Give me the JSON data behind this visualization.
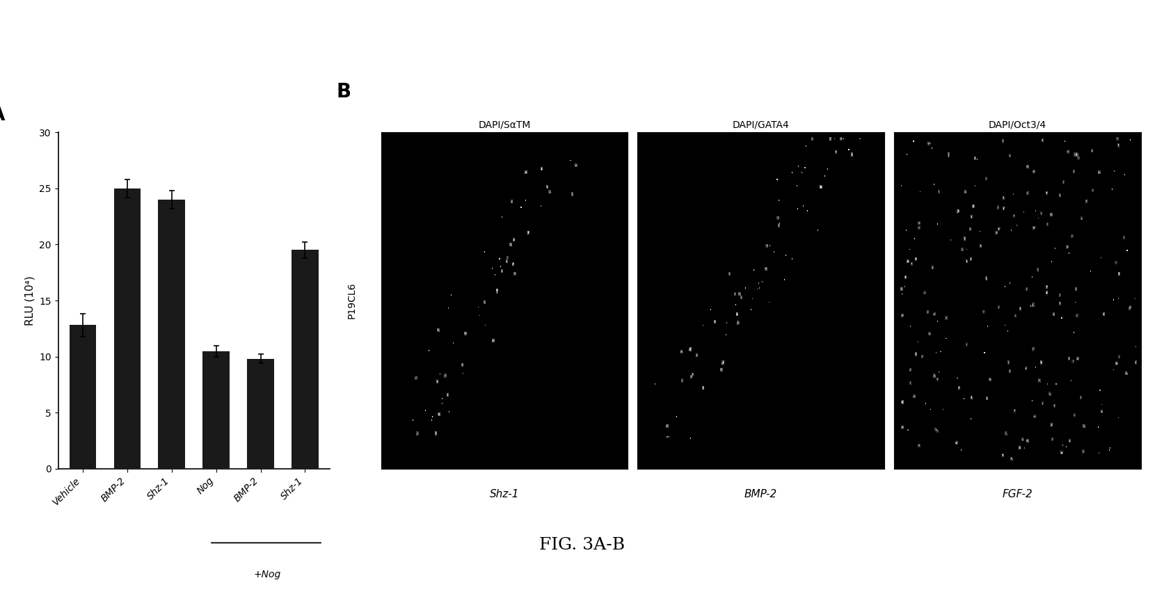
{
  "bar_values": [
    12.8,
    25.0,
    24.0,
    10.5,
    9.8,
    19.5
  ],
  "bar_errors": [
    1.0,
    0.8,
    0.8,
    0.5,
    0.4,
    0.7
  ],
  "bar_labels": [
    "Vehicle",
    "BMP-2",
    "Shz-1",
    "Nog",
    "BMP-2",
    "Shz-1"
  ],
  "bar_color": "#1a1a1a",
  "ylabel": "RLU (10⁴)",
  "ylim": [
    0,
    30
  ],
  "yticks": [
    0,
    5,
    10,
    15,
    20,
    25,
    30
  ],
  "panel_A_label": "A",
  "panel_B_label": "B",
  "nog_group_label": "+Nog",
  "col_labels_top": [
    "DAPI/SαTM",
    "DAPI/GATA4",
    "DAPI/Oct3/4"
  ],
  "row_label_left": "P19CL6",
  "col_labels_bottom": [
    "Shz-1",
    "BMP-2",
    "FGF-2"
  ],
  "fig_caption": "FIG. 3A-B",
  "bg_color": "#ffffff",
  "panel_label_fontsize": 20,
  "axis_fontsize": 11,
  "tick_fontsize": 10,
  "caption_fontsize": 18
}
